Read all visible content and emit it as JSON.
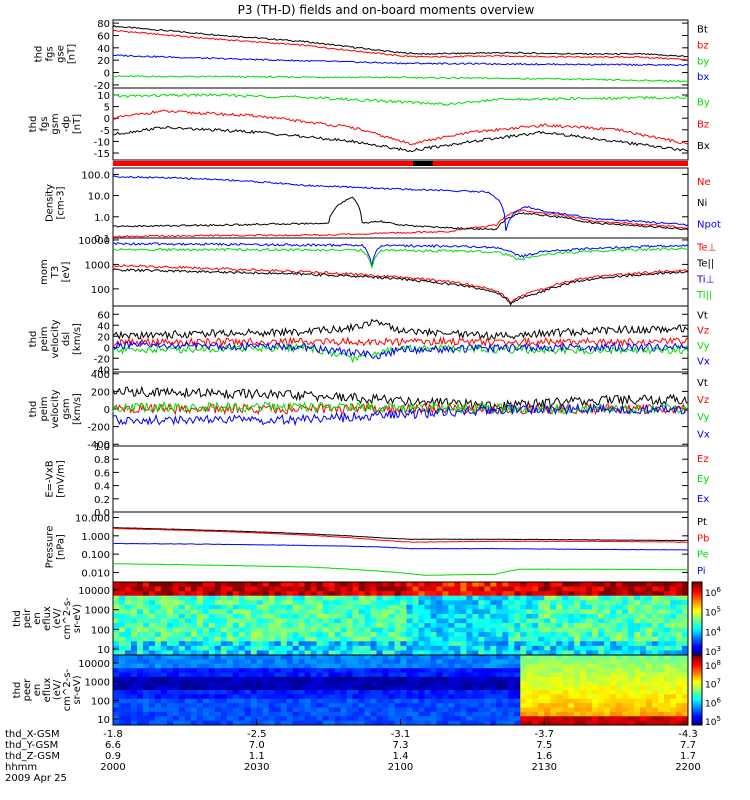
{
  "title": "P3 (TH-D) fields and on-board moments overview",
  "colors": {
    "black": "#000000",
    "red": "#ff0000",
    "green": "#00dd00",
    "blue": "#0000ff",
    "bar": "#ff0000"
  },
  "chart_data": {
    "type": "line",
    "x_axis": {
      "label_rows": [
        "thd_X-GSM",
        "thd_Y-GSM",
        "thd_Z-GSM",
        "hhmm"
      ],
      "ticks": [
        {
          "x_gsm": "-1.8",
          "y_gsm": "6.6",
          "z_gsm": "0.9",
          "hhmm": "2000"
        },
        {
          "x_gsm": "-2.5",
          "y_gsm": "7.0",
          "z_gsm": "1.1",
          "hhmm": "2030"
        },
        {
          "x_gsm": "-3.1",
          "y_gsm": "7.3",
          "z_gsm": "1.4",
          "hhmm": "2100"
        },
        {
          "x_gsm": "-3.7",
          "y_gsm": "7.5",
          "z_gsm": "1.6",
          "hhmm": "2130"
        },
        {
          "x_gsm": "-4.3",
          "y_gsm": "7.7",
          "z_gsm": "1.7",
          "hhmm": "2200"
        }
      ],
      "date": "2009 Apr 25",
      "range_minutes": [
        0,
        120
      ]
    },
    "panels": [
      {
        "id": "fgs_gse",
        "ylabel": [
          "thd",
          "fgs",
          "gse",
          "[nT]"
        ],
        "ylim": [
          -25,
          85
        ],
        "log": false,
        "yticks": [
          "80",
          "60",
          "40",
          "20",
          "0",
          "-20"
        ],
        "ytick_values": [
          80,
          60,
          40,
          20,
          0,
          -20
        ],
        "series": [
          {
            "name": "Bt",
            "color": "black",
            "x": [
              0,
              20,
              40,
              60,
              65,
              80,
              100,
              110,
              120
            ],
            "y": [
              75,
              62,
              50,
              32,
              30,
              32,
              30,
              30,
              26
            ]
          },
          {
            "name": "bz",
            "color": "red",
            "x": [
              0,
              20,
              40,
              60,
              65,
              80,
              100,
              110,
              120
            ],
            "y": [
              68,
              55,
              44,
              27,
              25,
              27,
              25,
              25,
              21
            ]
          },
          {
            "name": "by",
            "color": "green",
            "x": [
              0,
              30,
              60,
              90,
              120
            ],
            "y": [
              -6,
              -7,
              -8,
              -10,
              -14
            ]
          },
          {
            "name": "bx",
            "color": "blue",
            "x": [
              0,
              20,
              40,
              60,
              80,
              100,
              120
            ],
            "y": [
              28,
              23,
              19,
              15,
              14,
              13,
              12
            ]
          }
        ]
      },
      {
        "id": "fgs_gsm_dp",
        "ylabel": [
          "thd",
          "fgs",
          "gsm",
          "-dp",
          "[nT]"
        ],
        "ylim": [
          -18,
          13
        ],
        "log": false,
        "yticks": [
          "10",
          "5",
          "0",
          "-5",
          "-10",
          "-15"
        ],
        "ytick_values": [
          10,
          5,
          0,
          -5,
          -10,
          -15
        ],
        "series": [
          {
            "name": "By",
            "color": "green",
            "x": [
              0,
              20,
              40,
              50,
              60,
              70,
              80,
              100,
              120
            ],
            "y": [
              9.5,
              10,
              9,
              8,
              7,
              6,
              8,
              8.5,
              9
            ]
          },
          {
            "name": "Bz",
            "color": "red",
            "x": [
              0,
              10,
              30,
              50,
              62,
              75,
              90,
              105,
              120
            ],
            "y": [
              0,
              3,
              1,
              -4,
              -11,
              -6,
              -3,
              -5,
              -11
            ]
          },
          {
            "name": "Bx",
            "color": "black",
            "x": [
              0,
              10,
              30,
              50,
              62,
              75,
              90,
              105,
              120
            ],
            "y": [
              -7,
              -4,
              -6,
              -10,
              -14,
              -10,
              -6,
              -10,
              -14
            ]
          }
        ]
      },
      {
        "id": "density",
        "ylabel": [
          "Density",
          "[cm-3]"
        ],
        "ylim": [
          0.1,
          200
        ],
        "log": true,
        "yticks": [
          "100.0",
          "10.0",
          "1.0",
          "0.1"
        ],
        "ytick_values": [
          100,
          10,
          1,
          0.1
        ],
        "series": [
          {
            "name": "Ne",
            "color": "red",
            "x": [
              0,
              20,
              45,
              70,
              80,
              85,
              90,
              100,
              120
            ],
            "y": [
              0.12,
              0.13,
              0.14,
              0.2,
              0.4,
              2.0,
              1.5,
              0.6,
              0.3
            ]
          },
          {
            "name": "Ni",
            "color": "black",
            "x": [
              0,
              20,
              45,
              50,
              52,
              56,
              60,
              70,
              80,
              85,
              100,
              120
            ],
            "y": [
              0.35,
              0.4,
              0.5,
              8,
              0.5,
              0.6,
              0.4,
              0.3,
              0.25,
              1.5,
              0.5,
              0.25
            ]
          },
          {
            "name": "Npot",
            "color": "blue",
            "x": [
              0,
              20,
              40,
              60,
              78,
              82,
              86,
              90,
              100,
              120
            ],
            "y": [
              80,
              60,
              30,
              20,
              15,
              0.2,
              3,
              1.8,
              0.8,
              0.4
            ]
          }
        ]
      },
      {
        "id": "mom_temp",
        "ylabel": [
          "mom",
          "T3",
          "[eV]"
        ],
        "ylim": [
          20,
          12000
        ],
        "log": true,
        "yticks": [
          "10000",
          "1000",
          "100"
        ],
        "ytick_values": [
          10000,
          1000,
          100
        ],
        "series": [
          {
            "name": "Te⊥",
            "color": "red",
            "x": [
              0,
              20,
              40,
              55,
              70,
              80,
              83,
              90,
              100,
              120
            ],
            "y": [
              900,
              700,
              500,
              350,
              200,
              80,
              30,
              100,
              300,
              600
            ]
          },
          {
            "name": "Te||",
            "color": "black",
            "x": [
              0,
              20,
              40,
              55,
              70,
              80,
              83,
              90,
              100,
              120
            ],
            "y": [
              600,
              500,
              400,
              300,
              160,
              70,
              25,
              80,
              250,
              500
            ]
          },
          {
            "name": "Ti⊥",
            "color": "blue",
            "x": [
              0,
              30,
              52,
              54,
              56,
              70,
              80,
              85,
              90,
              100,
              120
            ],
            "y": [
              7000,
              6500,
              6000,
              900,
              6000,
              5500,
              5000,
              2000,
              3500,
              4500,
              6000
            ]
          },
          {
            "name": "Ti||",
            "color": "green",
            "x": [
              0,
              30,
              52,
              54,
              56,
              70,
              80,
              85,
              90,
              100,
              120
            ],
            "y": [
              4000,
              4000,
              3800,
              700,
              3800,
              3500,
              3200,
              1500,
              2500,
              3500,
              4500
            ]
          }
        ]
      },
      {
        "id": "peim_velocity_dsl",
        "ylabel": [
          "thd",
          "peim",
          "velocity",
          "dsl",
          "[km/s]"
        ],
        "ylim": [
          -45,
          75
        ],
        "log": false,
        "yticks": [
          "60",
          "40",
          "20",
          "0",
          "-20",
          "-40"
        ],
        "ytick_values": [
          60,
          40,
          20,
          0,
          -20,
          -40
        ],
        "series": [
          {
            "name": "Vt",
            "color": "black",
            "x": [
              0,
              20,
              40,
              50,
              55,
              60,
              80,
              100,
              120
            ],
            "y": [
              20,
              25,
              28,
              35,
              50,
              30,
              20,
              30,
              35
            ]
          },
          {
            "name": "Vz",
            "color": "red",
            "x": [
              0,
              30,
              60,
              90,
              120
            ],
            "y": [
              8,
              10,
              10,
              10,
              10
            ]
          },
          {
            "name": "Vy",
            "color": "green",
            "x": [
              0,
              20,
              40,
              50,
              60,
              90,
              120
            ],
            "y": [
              -5,
              -3,
              0,
              -20,
              0,
              -5,
              -5
            ]
          },
          {
            "name": "Vx",
            "color": "blue",
            "x": [
              0,
              20,
              40,
              55,
              60,
              90,
              120
            ],
            "y": [
              3,
              2,
              0,
              -15,
              -5,
              0,
              0
            ]
          }
        ]
      },
      {
        "id": "peim_velocity_gsm",
        "ylabel": [
          "thd",
          "peim",
          "velocity",
          "gsm",
          "[km/s]"
        ],
        "ylim": [
          -420,
          420
        ],
        "log": false,
        "yticks": [
          "400",
          "200",
          "0",
          "-200",
          "-400"
        ],
        "ytick_values": [
          400,
          200,
          0,
          -200,
          -400
        ],
        "series": [
          {
            "name": "Vt",
            "color": "black",
            "x": [
              0,
              20,
              40,
              60,
              80,
              100,
              120
            ],
            "y": [
              200,
              180,
              150,
              100,
              30,
              100,
              110
            ]
          },
          {
            "name": "Vz",
            "color": "red",
            "x": [
              0,
              30,
              60,
              90,
              120
            ],
            "y": [
              0,
              0,
              0,
              0,
              0
            ]
          },
          {
            "name": "Vy",
            "color": "green",
            "x": [
              0,
              30,
              60,
              90,
              120
            ],
            "y": [
              20,
              20,
              20,
              0,
              0
            ]
          },
          {
            "name": "Vx",
            "color": "blue",
            "x": [
              0,
              20,
              40,
              60,
              80,
              100,
              120
            ],
            "y": [
              -120,
              -130,
              -120,
              -60,
              -10,
              0,
              0
            ]
          }
        ]
      },
      {
        "id": "e_vxb",
        "ylabel": [
          "E=-VxB",
          "[mV/m]"
        ],
        "ylim": [
          0,
          1
        ],
        "log": false,
        "yticks": [
          "1.0",
          "0.8",
          "0.6",
          "0.4",
          "0.2",
          "0.0"
        ],
        "ytick_values": [
          1,
          0.8,
          0.6,
          0.4,
          0.2,
          0
        ],
        "series": [
          {
            "name": "Ez",
            "color": "red",
            "x": [],
            "y": []
          },
          {
            "name": "Ey",
            "color": "green",
            "x": [],
            "y": []
          },
          {
            "name": "Ex",
            "color": "blue",
            "x": [],
            "y": []
          }
        ]
      },
      {
        "id": "pressure",
        "ylabel": [
          "Pressure",
          "[nPa]"
        ],
        "ylim": [
          0.003,
          20
        ],
        "log": true,
        "yticks": [
          "10.000",
          "1.000",
          "0.100",
          "0.010"
        ],
        "ytick_values": [
          10,
          1,
          0.1,
          0.01
        ],
        "series": [
          {
            "name": "Pt",
            "color": "black",
            "x": [
              0,
              20,
              40,
              55,
              62,
              80,
              100,
              120
            ],
            "y": [
              2.8,
              2.0,
              1.3,
              0.8,
              0.65,
              0.65,
              0.6,
              0.55
            ]
          },
          {
            "name": "Pb",
            "color": "red",
            "x": [
              0,
              20,
              40,
              55,
              62,
              80,
              100,
              120
            ],
            "y": [
              2.5,
              1.8,
              1.1,
              0.6,
              0.45,
              0.5,
              0.5,
              0.45
            ]
          },
          {
            "name": "Pe",
            "color": "green",
            "x": [
              0,
              20,
              40,
              55,
              65,
              80,
              85,
              100,
              120
            ],
            "y": [
              0.03,
              0.025,
              0.02,
              0.012,
              0.007,
              0.008,
              0.015,
              0.015,
              0.014
            ]
          },
          {
            "name": "Pi",
            "color": "blue",
            "x": [
              0,
              20,
              40,
              55,
              62,
              80,
              100,
              120
            ],
            "y": [
              0.38,
              0.35,
              0.3,
              0.25,
              0.2,
              0.2,
              0.18,
              0.17
            ]
          }
        ]
      }
    ],
    "spectrograms": [
      {
        "id": "peir_eflux",
        "ylabel": [
          "thd",
          "peir",
          "en",
          "eflux",
          "(eV/",
          "cm^2-s-",
          "sr-eV)"
        ],
        "yticks": [
          "10000",
          "1000",
          "100",
          "10"
        ],
        "colorbar_ticks": [
          "10^6",
          "10^5",
          "10^4",
          "10^3"
        ]
      },
      {
        "id": "peer_eflux",
        "ylabel": [
          "thd",
          "peer",
          "en",
          "eflux",
          "(eV/",
          "cm^2-s-",
          "sr-eV)"
        ],
        "yticks": [
          "10000",
          "1000",
          "100",
          "10"
        ],
        "colorbar_ticks": [
          "10^8",
          "10^7",
          "10^6",
          "10^5"
        ]
      }
    ]
  }
}
